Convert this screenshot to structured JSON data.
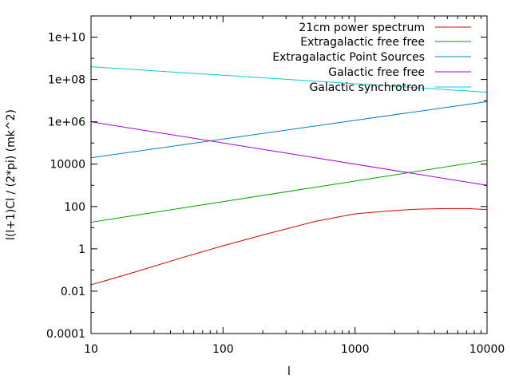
{
  "chart_data": {
    "type": "line",
    "title": "",
    "xlabel": "l",
    "ylabel": "l(l+1)Cl / (2*pi) (mk^2)",
    "xscale": "log",
    "yscale": "log",
    "xlim": [
      10,
      10000
    ],
    "ylim": [
      0.0001,
      100000000000
    ],
    "grid": false,
    "legend_position": "top-right",
    "x_ticks": [
      {
        "value": 10,
        "label": "10"
      },
      {
        "value": 100,
        "label": "100"
      },
      {
        "value": 1000,
        "label": "1000"
      },
      {
        "value": 10000,
        "label": "10000"
      }
    ],
    "y_ticks": [
      {
        "value": 0.0001,
        "label": "0.0001"
      },
      {
        "value": 0.01,
        "label": "0.01"
      },
      {
        "value": 1,
        "label": "1"
      },
      {
        "value": 100,
        "label": "100"
      },
      {
        "value": 10000,
        "label": "10000"
      },
      {
        "value": 1000000,
        "label": "1e+06"
      },
      {
        "value": 100000000,
        "label": "1e+08"
      },
      {
        "value": 10000000000,
        "label": "1e+10"
      }
    ],
    "series": [
      {
        "name": "21cm power spectrum",
        "color": "#e00000",
        "x": [
          10,
          20,
          50,
          100,
          200,
          500,
          1000,
          2000,
          3000,
          5000,
          7000,
          10000
        ],
        "y": [
          0.02,
          0.07,
          0.4,
          1.4,
          4.5,
          20,
          45,
          65,
          75,
          80,
          80,
          72
        ]
      },
      {
        "name": "Extragalactic free free",
        "color": "#00a000",
        "x": [
          10,
          10000
        ],
        "y": [
          18,
          15000
        ]
      },
      {
        "name": "Extragalactic Point Sources",
        "color": "#0080c0",
        "x": [
          10,
          10000
        ],
        "y": [
          20000,
          9000000
        ]
      },
      {
        "name": "Galactic free free",
        "color": "#a000e0",
        "x": [
          10,
          10000
        ],
        "y": [
          1000000,
          1000
        ]
      },
      {
        "name": "Galactic synchrotron",
        "color": "#00d0d0",
        "x": [
          10,
          10000
        ],
        "y": [
          400000000,
          25000000
        ]
      }
    ]
  }
}
